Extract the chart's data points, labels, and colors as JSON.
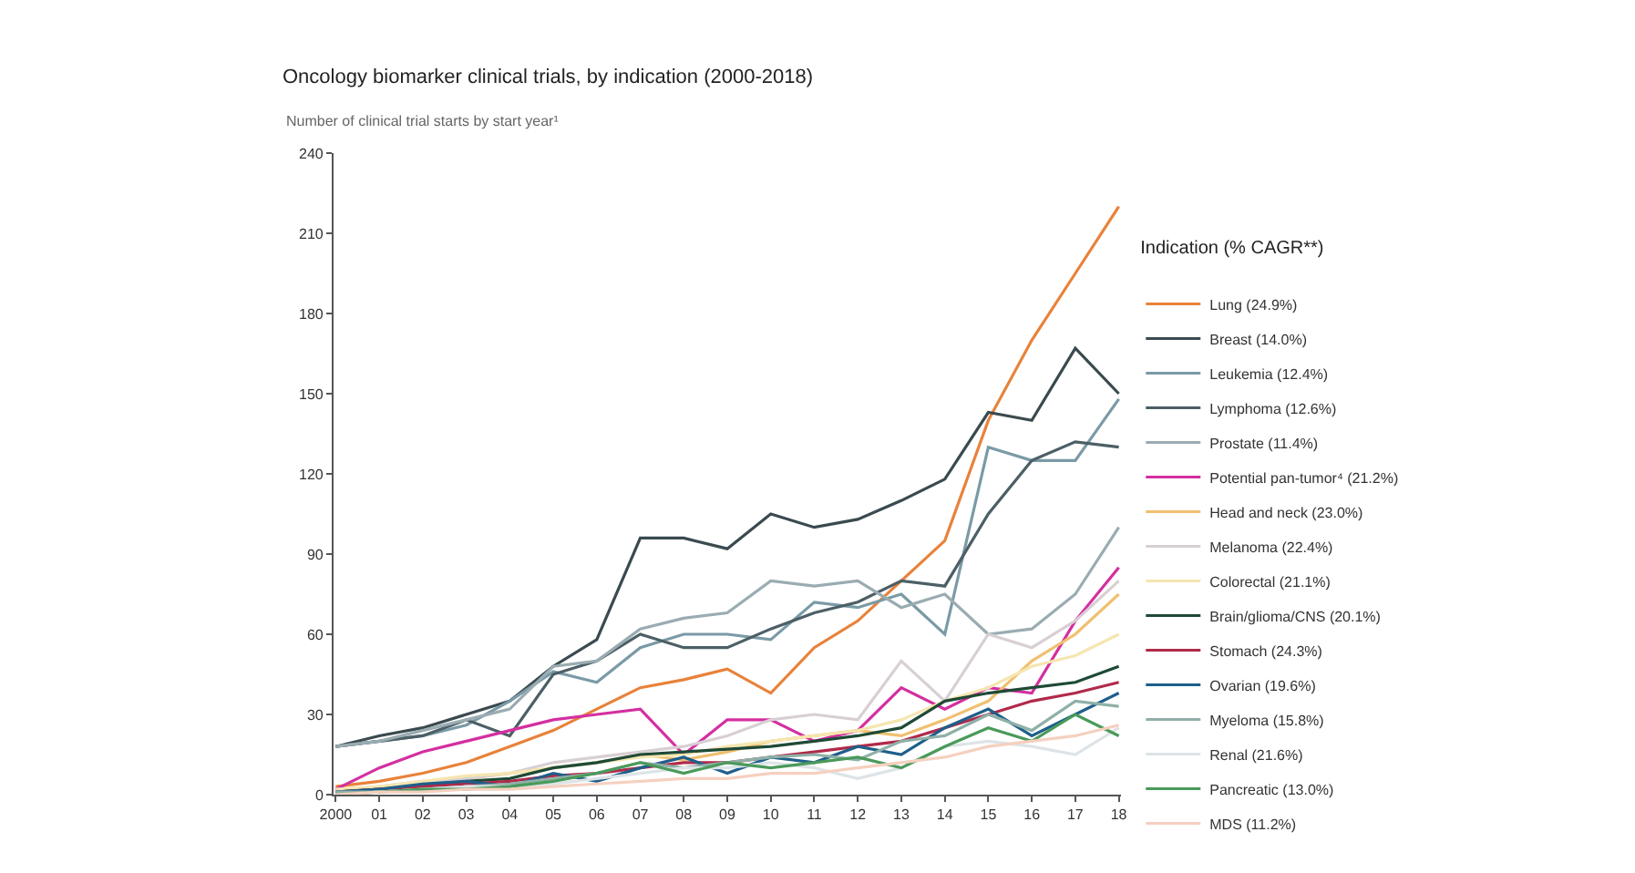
{
  "chart_data": {
    "type": "line",
    "title": "Oncology biomarker clinical trials, by indication (2000-2018)",
    "subtitle": "Number of clinical trial starts by start year¹",
    "legend_title": "Indication (% CAGR**)",
    "categories": [
      "2000",
      "01",
      "02",
      "03",
      "04",
      "05",
      "06",
      "07",
      "08",
      "09",
      "10",
      "11",
      "12",
      "13",
      "14",
      "15",
      "16",
      "17",
      "18"
    ],
    "ylim": [
      0,
      240
    ],
    "yticks": [
      0,
      30,
      60,
      90,
      120,
      150,
      180,
      210,
      240
    ],
    "grid": false,
    "legend": "right",
    "marker": "none",
    "line_style": "solid",
    "series": [
      {
        "name": "Lung (24.9%)",
        "color": "#e8823a",
        "values": [
          3,
          5,
          8,
          12,
          18,
          24,
          32,
          40,
          43,
          47,
          38,
          55,
          65,
          80,
          95,
          140,
          170,
          195,
          220
        ]
      },
      {
        "name": "Breast (14.0%)",
        "color": "#3a4a4f",
        "values": [
          18,
          22,
          25,
          30,
          35,
          48,
          58,
          96,
          96,
          92,
          105,
          100,
          103,
          110,
          118,
          143,
          140,
          167,
          150
        ]
      },
      {
        "name": "Leukemia (12.4%)",
        "color": "#7a9aa6",
        "values": [
          18,
          20,
          22,
          26,
          35,
          46,
          42,
          55,
          60,
          60,
          58,
          72,
          70,
          75,
          60,
          130,
          125,
          125,
          148
        ]
      },
      {
        "name": "Lymphoma (12.6%)",
        "color": "#4c5f66",
        "values": [
          18,
          20,
          22,
          28,
          22,
          45,
          50,
          60,
          55,
          55,
          62,
          68,
          72,
          80,
          78,
          105,
          125,
          132,
          130
        ]
      },
      {
        "name": "Prostate (11.4%)",
        "color": "#9aacb2",
        "values": [
          18,
          20,
          24,
          28,
          32,
          48,
          50,
          62,
          66,
          68,
          80,
          78,
          80,
          70,
          75,
          60,
          62,
          75,
          100
        ]
      },
      {
        "name": "Potential pan-tumor⁴ (21.2%)",
        "color": "#d42fa0",
        "values": [
          2,
          10,
          16,
          20,
          24,
          28,
          30,
          32,
          15,
          28,
          28,
          20,
          24,
          40,
          32,
          40,
          38,
          65,
          85
        ]
      },
      {
        "name": "Head and neck (23.0%)",
        "color": "#f0c070",
        "values": [
          1,
          2,
          4,
          6,
          8,
          10,
          12,
          15,
          13,
          16,
          20,
          22,
          24,
          22,
          28,
          35,
          50,
          60,
          75
        ]
      },
      {
        "name": "Melanoma (22.4%)",
        "color": "#d8cfd4",
        "values": [
          1,
          3,
          5,
          6,
          8,
          12,
          14,
          16,
          18,
          22,
          28,
          30,
          28,
          50,
          35,
          60,
          55,
          65,
          80
        ]
      },
      {
        "name": "Colorectal (21.1%)",
        "color": "#f5e6b0",
        "values": [
          2,
          3,
          5,
          7,
          8,
          10,
          12,
          14,
          15,
          18,
          20,
          22,
          24,
          28,
          35,
          40,
          48,
          52,
          60
        ]
      },
      {
        "name": "Brain/glioma/CNS (20.1%)",
        "color": "#1e4a36",
        "values": [
          1,
          2,
          3,
          5,
          6,
          10,
          12,
          15,
          16,
          17,
          18,
          20,
          22,
          25,
          35,
          38,
          40,
          42,
          48
        ]
      },
      {
        "name": "Stomach (24.3%)",
        "color": "#b02a4a",
        "values": [
          1,
          2,
          3,
          4,
          5,
          7,
          8,
          10,
          12,
          12,
          14,
          16,
          18,
          20,
          25,
          30,
          35,
          38,
          42
        ]
      },
      {
        "name": "Ovarian (19.6%)",
        "color": "#1f5f8a",
        "values": [
          1,
          2,
          4,
          5,
          3,
          8,
          5,
          10,
          14,
          8,
          14,
          12,
          18,
          15,
          25,
          32,
          22,
          30,
          38
        ]
      },
      {
        "name": "Myeloma (15.8%)",
        "color": "#8fb0a8",
        "values": [
          1,
          1,
          2,
          3,
          4,
          6,
          8,
          12,
          10,
          12,
          14,
          15,
          13,
          20,
          22,
          30,
          24,
          35,
          33
        ]
      },
      {
        "name": "Renal (21.6%)",
        "color": "#dde4e8",
        "values": [
          0,
          1,
          2,
          3,
          3,
          4,
          6,
          8,
          10,
          10,
          12,
          10,
          6,
          10,
          18,
          20,
          18,
          15,
          25
        ]
      },
      {
        "name": "Pancreatic (13.0%)",
        "color": "#4a9a5a",
        "values": [
          0,
          1,
          2,
          2,
          3,
          5,
          8,
          12,
          8,
          12,
          10,
          12,
          14,
          10,
          18,
          25,
          20,
          30,
          22
        ]
      },
      {
        "name": "MDS (11.2%)",
        "color": "#f5d0c0",
        "values": [
          0,
          1,
          1,
          2,
          2,
          3,
          4,
          5,
          6,
          6,
          8,
          8,
          10,
          12,
          14,
          18,
          20,
          22,
          26
        ]
      }
    ]
  }
}
